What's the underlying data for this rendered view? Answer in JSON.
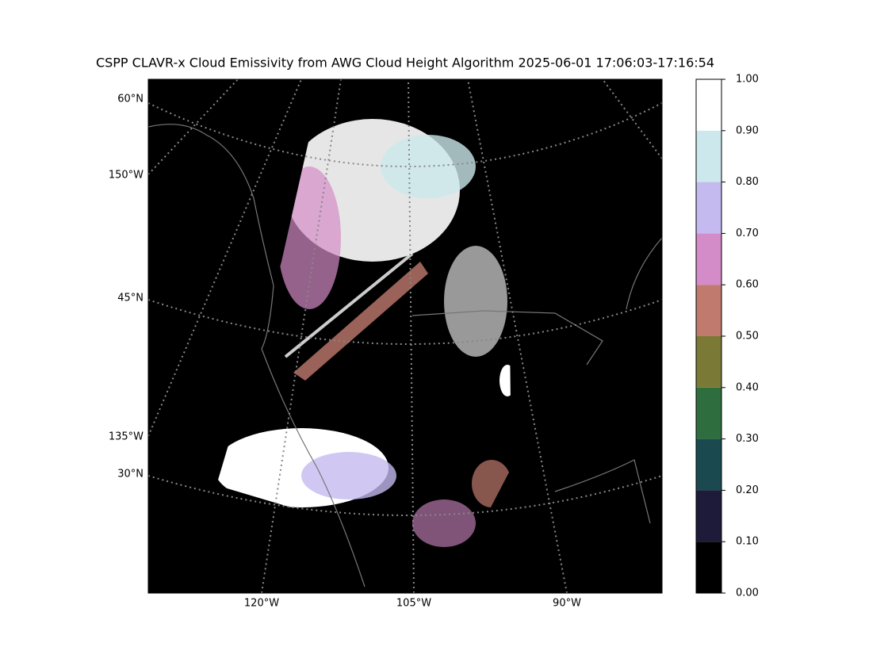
{
  "title": "CSPP CLAVR-x Cloud Emissivity from AWG Cloud Height Algorithm 2025-06-01 17:06:03-17:16:54",
  "map": {
    "left_labels": [
      "60°N",
      "150°W",
      "45°N",
      "135°W",
      "30°N"
    ],
    "bottom_labels": [
      "120°W",
      "105°W",
      "90°W"
    ]
  },
  "colorbar": {
    "ticks": [
      {
        "value": 0,
        "label": "0.00"
      },
      {
        "value": 0.1,
        "label": "0.10"
      },
      {
        "value": 0.2,
        "label": "0.20"
      },
      {
        "value": 0.3,
        "label": "0.30"
      },
      {
        "value": 0.4,
        "label": "0.40"
      },
      {
        "value": 0.5,
        "label": "0.50"
      },
      {
        "value": 0.6,
        "label": "0.60"
      },
      {
        "value": 0.7,
        "label": "0.70"
      },
      {
        "value": 0.8,
        "label": "0.80"
      },
      {
        "value": 0.9,
        "label": "0.90"
      },
      {
        "value": 1,
        "label": "1.00"
      }
    ],
    "colors": [
      "#000000",
      "#1e1a3a",
      "#1a4a50",
      "#2e6e3e",
      "#7a7a36",
      "#c07a6e",
      "#d48cc8",
      "#c4baf0",
      "#cce8ec",
      "#ffffff"
    ],
    "lim": [
      0,
      1
    ]
  }
}
